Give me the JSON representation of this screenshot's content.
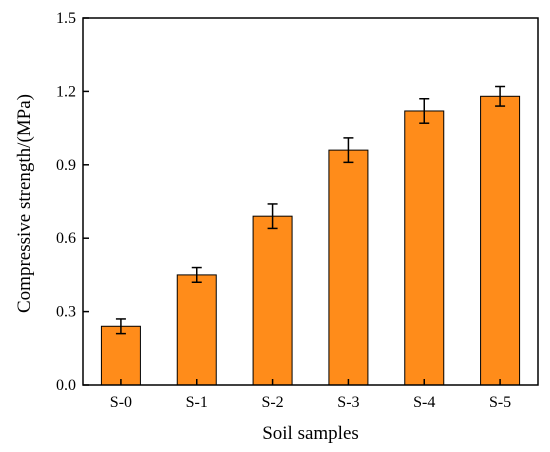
{
  "chart_data": {
    "type": "bar",
    "categories": [
      "S-0",
      "S-1",
      "S-2",
      "S-3",
      "S-4",
      "S-5"
    ],
    "values": [
      0.24,
      0.45,
      0.69,
      0.96,
      1.12,
      1.18
    ],
    "errors": [
      0.03,
      0.03,
      0.05,
      0.05,
      0.05,
      0.04
    ],
    "xlabel": "Soil samples",
    "ylabel": "Compressive strength/(MPa)",
    "ylim": [
      0.0,
      1.5
    ],
    "yticks": [
      "0.0",
      "0.3",
      "0.6",
      "0.9",
      "1.2",
      "1.5"
    ],
    "grid": false,
    "colors": {
      "bar": "#FF8C1A",
      "edge": "#000000"
    }
  }
}
